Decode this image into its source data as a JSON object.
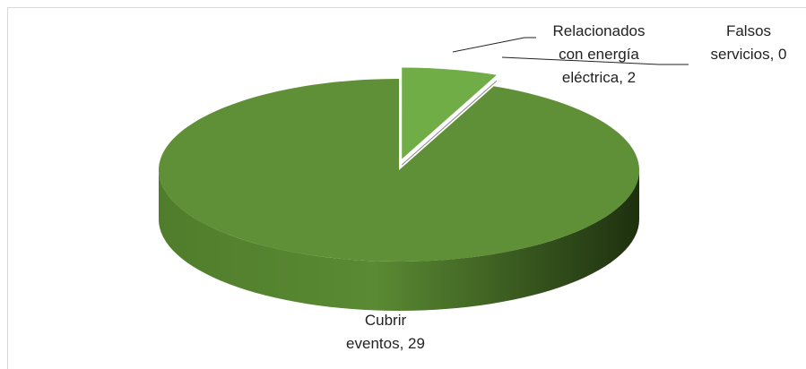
{
  "chart_data": {
    "type": "pie3d",
    "values": [
      2,
      0,
      29
    ],
    "value_labels": [
      "Relacionados con energía eléctrica, 2",
      "Falsos servicios, 0",
      "Cubrir eventos, 29"
    ],
    "colors": [
      "#70ad47",
      "#a5a5a5",
      "#5f9037"
    ]
  }
}
